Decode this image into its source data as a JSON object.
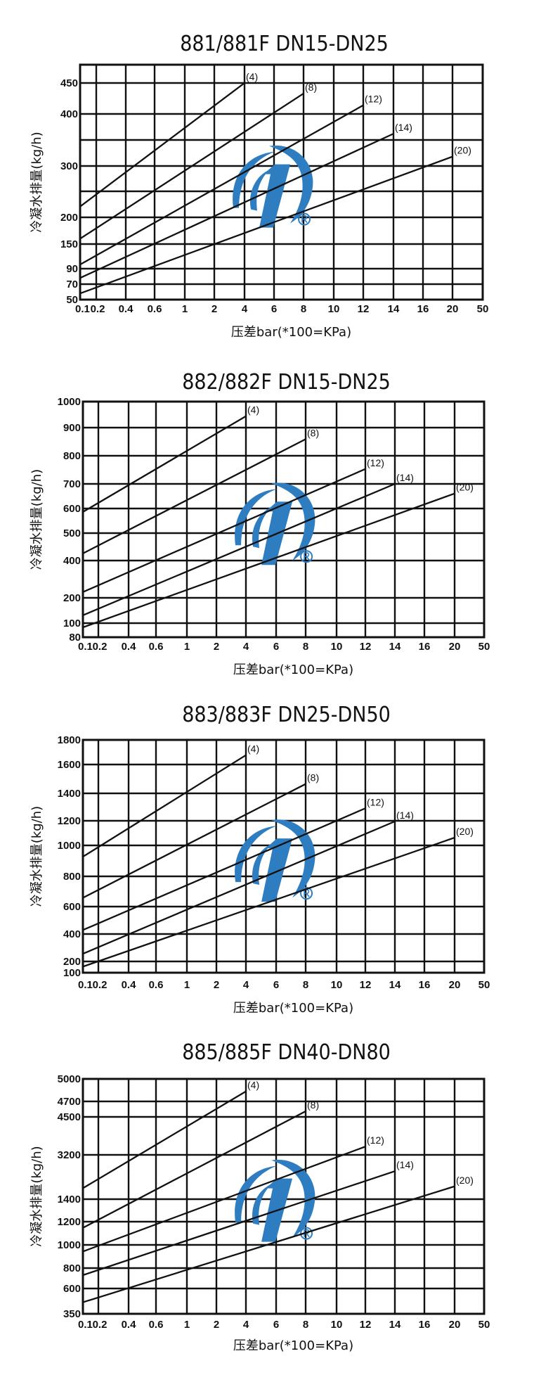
{
  "logo_color": "#2e7dc1",
  "chart_data": [
    {
      "type": "line",
      "title": "881/881F DN15-DN25",
      "xlabel": "压差bar(*100=KPa)",
      "ylabel": "冷凝水排量(kg/h)",
      "x_ticks": [
        "0.1",
        "0.2",
        "0.4",
        "0.6",
        "1",
        "2",
        "4",
        "6",
        "8",
        "10",
        "12",
        "14",
        "16",
        "20",
        "50"
      ],
      "y_ticks": [
        "450",
        "400",
        "300",
        "200",
        "150",
        "90",
        "70",
        "50"
      ],
      "grid": true,
      "series": [
        {
          "name": "(4)",
          "points": [
            [
              0.1,
              221
            ],
            [
              4,
              450
            ]
          ]
        },
        {
          "name": "(8)",
          "points": [
            [
              0.1,
              160
            ],
            [
              8,
              433
            ]
          ]
        },
        {
          "name": "(12)",
          "points": [
            [
              0.1,
              100
            ],
            [
              12,
              414
            ]
          ]
        },
        {
          "name": "(14)",
          "points": [
            [
              0.1,
              78
            ],
            [
              14,
              362
            ]
          ]
        },
        {
          "name": "(20)",
          "points": [
            [
              0.1,
              58
            ],
            [
              20,
              318
            ]
          ]
        }
      ]
    },
    {
      "type": "line",
      "title": "882/882F DN15-DN25",
      "xlabel": "压差bar(*100=KPa)",
      "ylabel": "冷凝水排量(kg/h)",
      "x_ticks": [
        "0.1",
        "0.2",
        "0.4",
        "0.6",
        "1",
        "2",
        "4",
        "6",
        "8",
        "10",
        "12",
        "14",
        "16",
        "20",
        "50"
      ],
      "y_ticks": [
        "1000",
        "900",
        "800",
        "700",
        "600",
        "500",
        "400",
        "200",
        "100",
        "80"
      ],
      "grid": true,
      "series": [
        {
          "name": "(4)",
          "points": [
            [
              0.1,
              586
            ],
            [
              4,
              944
            ]
          ]
        },
        {
          "name": "(8)",
          "points": [
            [
              0.1,
              426
            ],
            [
              8,
              859
            ]
          ]
        },
        {
          "name": "(12)",
          "points": [
            [
              0.1,
              231
            ],
            [
              12,
              753
            ]
          ]
        },
        {
          "name": "(14)",
          "points": [
            [
              0.1,
              131
            ],
            [
              14,
              700
            ]
          ]
        },
        {
          "name": "(20)",
          "points": [
            [
              0.1,
              94
            ],
            [
              20,
              661
            ]
          ]
        }
      ]
    },
    {
      "type": "line",
      "title": "883/883F DN25-DN50",
      "xlabel": "压差bar(*100=KPa)",
      "ylabel": "冷凝水排量(kg/h)",
      "x_ticks": [
        "0.1",
        "0.2",
        "0.4",
        "0.6",
        "1",
        "2",
        "4",
        "6",
        "8",
        "10",
        "12",
        "14",
        "16",
        "20",
        "50"
      ],
      "y_ticks": [
        "1800",
        "1600",
        "1400",
        "1200",
        "1000",
        "800",
        "600",
        "400",
        "200",
        "100"
      ],
      "grid": true,
      "series": [
        {
          "name": "(4)",
          "points": [
            [
              0.1,
              927
            ],
            [
              4,
              1676
            ]
          ]
        },
        {
          "name": "(8)",
          "points": [
            [
              0.1,
              658
            ],
            [
              8,
              1465
            ]
          ]
        },
        {
          "name": "(12)",
          "points": [
            [
              0.1,
              429
            ],
            [
              12,
              1291
            ]
          ]
        },
        {
          "name": "(14)",
          "points": [
            [
              0.1,
              256
            ],
            [
              14,
              1195
            ]
          ]
        },
        {
          "name": "(20)",
          "points": [
            [
              0.1,
              154
            ],
            [
              20,
              1063
            ]
          ]
        }
      ]
    },
    {
      "type": "line",
      "title": "885/885F DN40-DN80",
      "xlabel": "压差bar(*100=KPa)",
      "ylabel": "冷凝水排量(kg/h)",
      "x_ticks": [
        "0.1",
        "0.2",
        "0.4",
        "0.6",
        "1",
        "2",
        "4",
        "6",
        "8",
        "10",
        "12",
        "14",
        "16",
        "20",
        "50"
      ],
      "y_ticks": [
        "5000",
        "4700",
        "4500",
        "3200",
        "1400",
        "1200",
        "1000",
        "800",
        "600",
        "350"
      ],
      "grid": true,
      "series": [
        {
          "name": "(4)",
          "points": [
            [
              0.1,
              1845
            ],
            [
              4,
              4834
            ]
          ]
        },
        {
          "name": "(8)",
          "points": [
            [
              0.1,
              1147
            ],
            [
              8,
              4573
            ]
          ]
        },
        {
          "name": "(12)",
          "points": [
            [
              0.1,
              943
            ],
            [
              12,
              3483
            ]
          ]
        },
        {
          "name": "(14)",
          "points": [
            [
              0.1,
              731
            ],
            [
              14,
              2537
            ]
          ]
        },
        {
          "name": "(20)",
          "points": [
            [
              0.1,
              464
            ],
            [
              20,
              1921
            ]
          ]
        }
      ]
    }
  ]
}
